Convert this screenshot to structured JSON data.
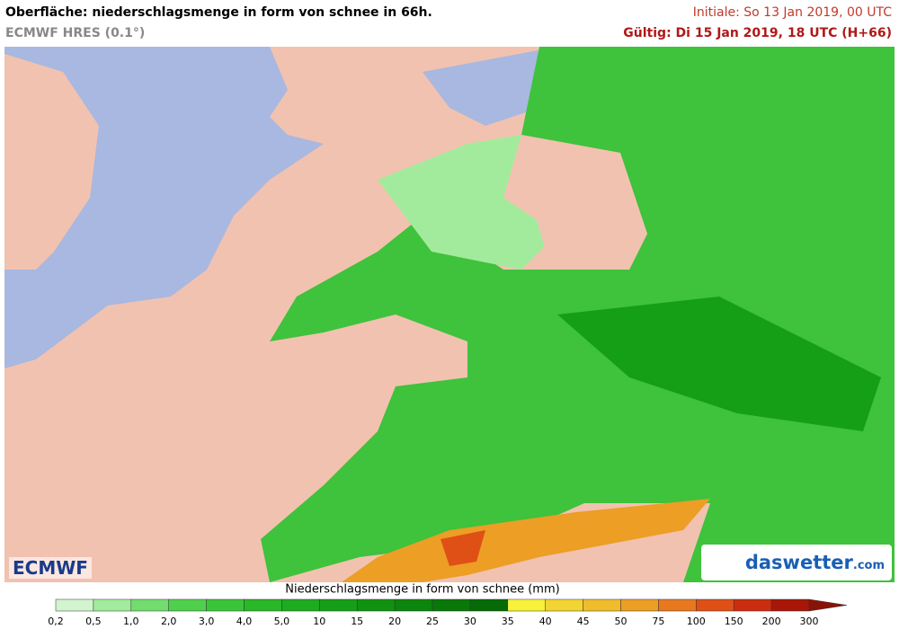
{
  "header": {
    "title": "Oberfläche: niederschlagsmenge in form von schnee in 66h.",
    "subtitle": "ECMWF HRES (0.1°)",
    "initial": "Initiale: So 13 Jan 2019, 00 UTC",
    "valid": "Gültig: Di 15 Jan 2019, 18 UTC (H+66)"
  },
  "logos": {
    "left": "ECMWF",
    "right": "daswetter",
    "right_suffix": ".com"
  },
  "legend": {
    "title": "Niederschlagsmenge in form von schnee (mm)",
    "labels": [
      "0,2",
      "0,5",
      "1,0",
      "2,0",
      "3,0",
      "4,0",
      "5,0",
      "10",
      "15",
      "20",
      "25",
      "30",
      "35",
      "40",
      "45",
      "50",
      "75",
      "100",
      "150",
      "200",
      "300"
    ],
    "colors": [
      "#d2f5cf",
      "#a3eb9c",
      "#72dc6e",
      "#4fd04d",
      "#3ac43a",
      "#28b828",
      "#1cac1e",
      "#159f17",
      "#109210",
      "#0b850c",
      "#087808",
      "#066a06",
      "#f7f23a",
      "#f2d532",
      "#efbc2b",
      "#ec9e25",
      "#e7781e",
      "#df5016",
      "#cc2c10",
      "#a81608",
      "#8a1206"
    ]
  }
}
